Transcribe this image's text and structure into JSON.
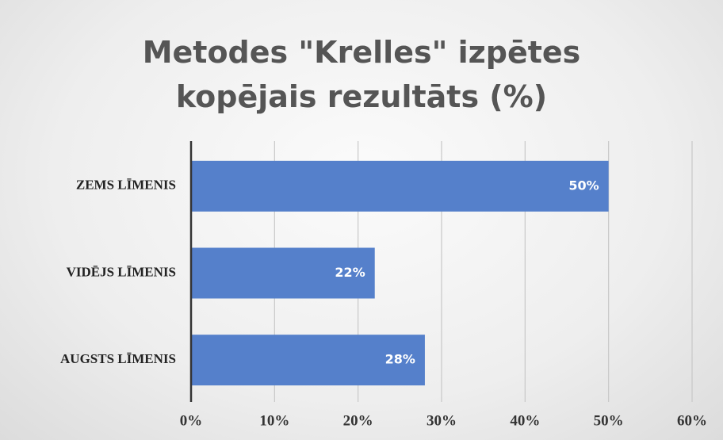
{
  "chart_data": {
    "type": "barh",
    "title": "Metodes \"Krelles\" izpētes kopējais rezultāts (%)",
    "categories": [
      "ZEMS LĪMENIS",
      "VIDĒJS LĪMENIS",
      "AUGSTS LĪMENIS"
    ],
    "values": [
      50,
      22,
      28
    ],
    "value_labels": [
      "50%",
      "22%",
      "28%"
    ],
    "color": "#5580cb",
    "xlim": [
      0,
      60
    ],
    "xticks": [
      {
        "value": 0,
        "label": "0%"
      },
      {
        "value": 10,
        "label": "10%"
      },
      {
        "value": 20,
        "label": "20%"
      },
      {
        "value": 30,
        "label": "30%"
      },
      {
        "value": 40,
        "label": "40%"
      },
      {
        "value": 50,
        "label": "50%"
      },
      {
        "value": 60,
        "label": "60%"
      }
    ],
    "grid": true
  }
}
